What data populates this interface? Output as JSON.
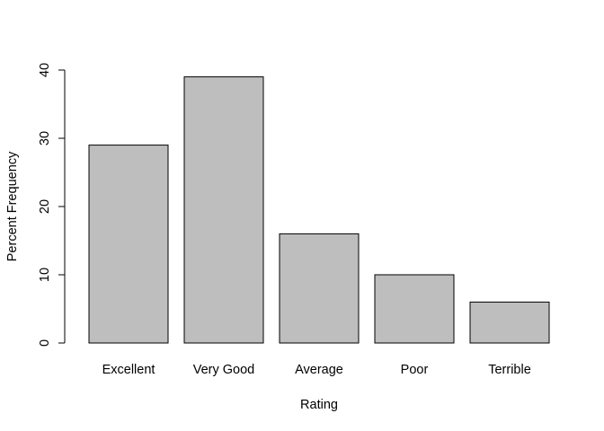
{
  "chart_data": {
    "type": "bar",
    "categories": [
      "Excellent",
      "Very Good",
      "Average",
      "Poor",
      "Terrible"
    ],
    "values": [
      29,
      39,
      16,
      10,
      6
    ],
    "xlabel": "Rating",
    "ylabel": "Percent Frequency",
    "ylim": [
      0,
      40
    ],
    "yticks": [
      0,
      10,
      20,
      30,
      40
    ],
    "grid": false,
    "legend": "none",
    "colors": {
      "bar_fill": "#bebebe",
      "bar_stroke": "#000000",
      "axis": "#000000"
    }
  }
}
